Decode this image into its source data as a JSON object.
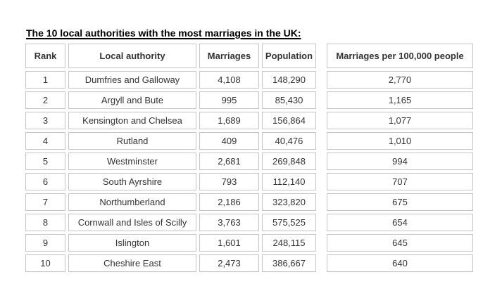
{
  "page": {
    "background": "#ffffff"
  },
  "colors": {
    "title_text": "#000000",
    "table_text": "#333333",
    "cell_border": "#c4c4c4"
  },
  "chart_data": {
    "type": "table",
    "title": "The 10 local authorities with the most marriages in the UK:",
    "columns": [
      "Rank",
      "Local authority",
      "Marriages",
      "Population",
      "Marriages per 100,000 people"
    ],
    "rows": [
      [
        "1",
        "Dumfries and Galloway",
        "4,108",
        "148,290",
        "2,770"
      ],
      [
        "2",
        "Argyll and Bute",
        "995",
        "85,430",
        "1,165"
      ],
      [
        "3",
        "Kensington and Chelsea",
        "1,689",
        "156,864",
        "1,077"
      ],
      [
        "4",
        "Rutland",
        "409",
        "40,476",
        "1,010"
      ],
      [
        "5",
        "Westminster",
        "2,681",
        "269,848",
        "994"
      ],
      [
        "6",
        "South Ayrshire",
        "793",
        "112,140",
        "707"
      ],
      [
        "7",
        "Northumberland",
        "2,186",
        "323,820",
        "675"
      ],
      [
        "8",
        "Cornwall and Isles of Scilly",
        "3,763",
        "575,525",
        "654"
      ],
      [
        "9",
        "Islington",
        "1,601",
        "248,115",
        "645"
      ],
      [
        "10",
        "Cheshire East",
        "2,473",
        "386,667",
        "640"
      ]
    ],
    "layout": {
      "grid": "separate-cell-borders",
      "header_bold": true,
      "values_alignment": "center"
    }
  }
}
